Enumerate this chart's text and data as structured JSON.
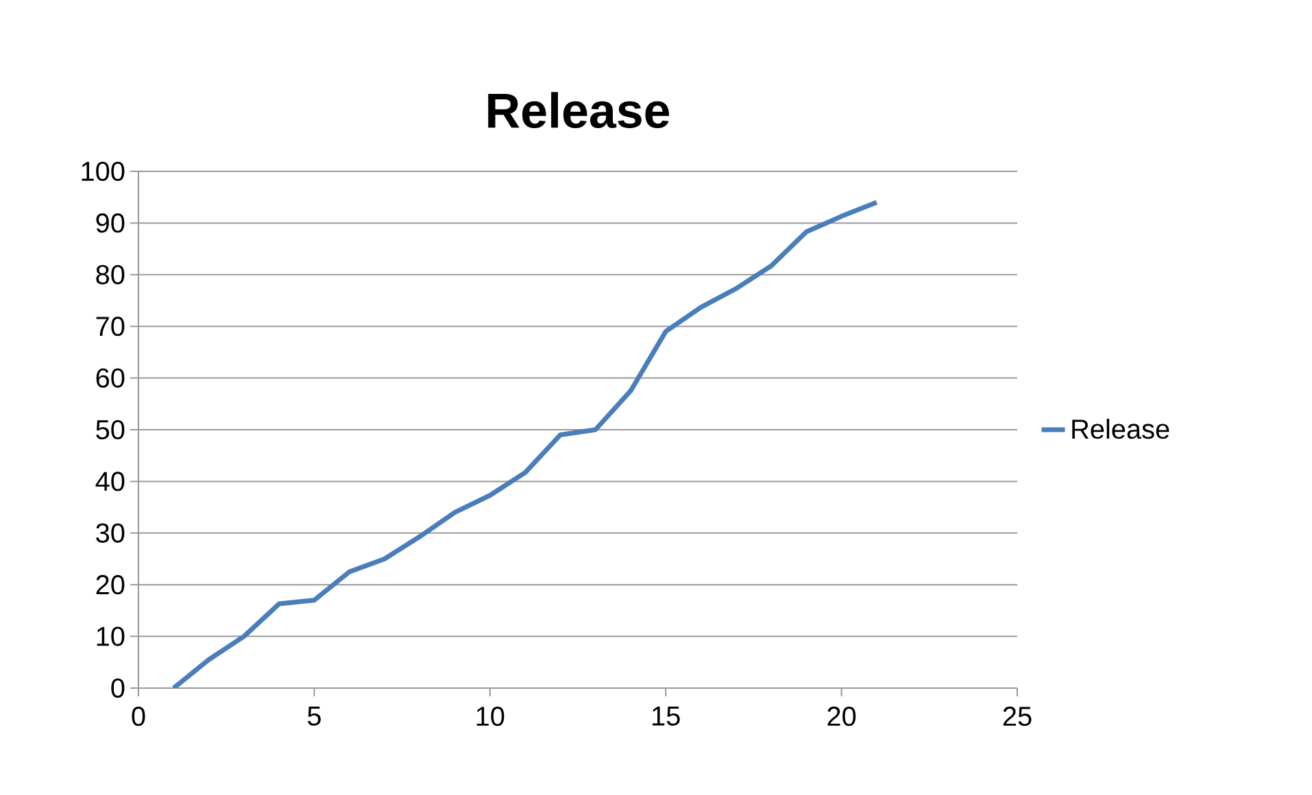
{
  "chart_data": {
    "type": "line",
    "title": "Release",
    "x": [
      1,
      2,
      3,
      4,
      5,
      6,
      7,
      8,
      9,
      10,
      11,
      12,
      13,
      14,
      15,
      16,
      17,
      18,
      19,
      20,
      21
    ],
    "series": [
      {
        "name": "Release",
        "color": "#4a7ebb",
        "values": [
          0,
          5.5,
          10,
          16.3,
          17,
          22.5,
          25,
          29.3,
          34,
          37.3,
          41.7,
          49,
          50,
          57.5,
          69,
          73.7,
          77.3,
          81.7,
          88.3,
          91.3,
          94
        ]
      }
    ],
    "xlim": [
      0,
      25
    ],
    "xticks": [
      0,
      5,
      10,
      15,
      20,
      25
    ],
    "ylim": [
      0,
      100
    ],
    "yticks": [
      0,
      10,
      20,
      30,
      40,
      50,
      60,
      70,
      80,
      90,
      100
    ],
    "grid": "y",
    "legend": "right",
    "marker": "none",
    "line_style": "solid"
  }
}
